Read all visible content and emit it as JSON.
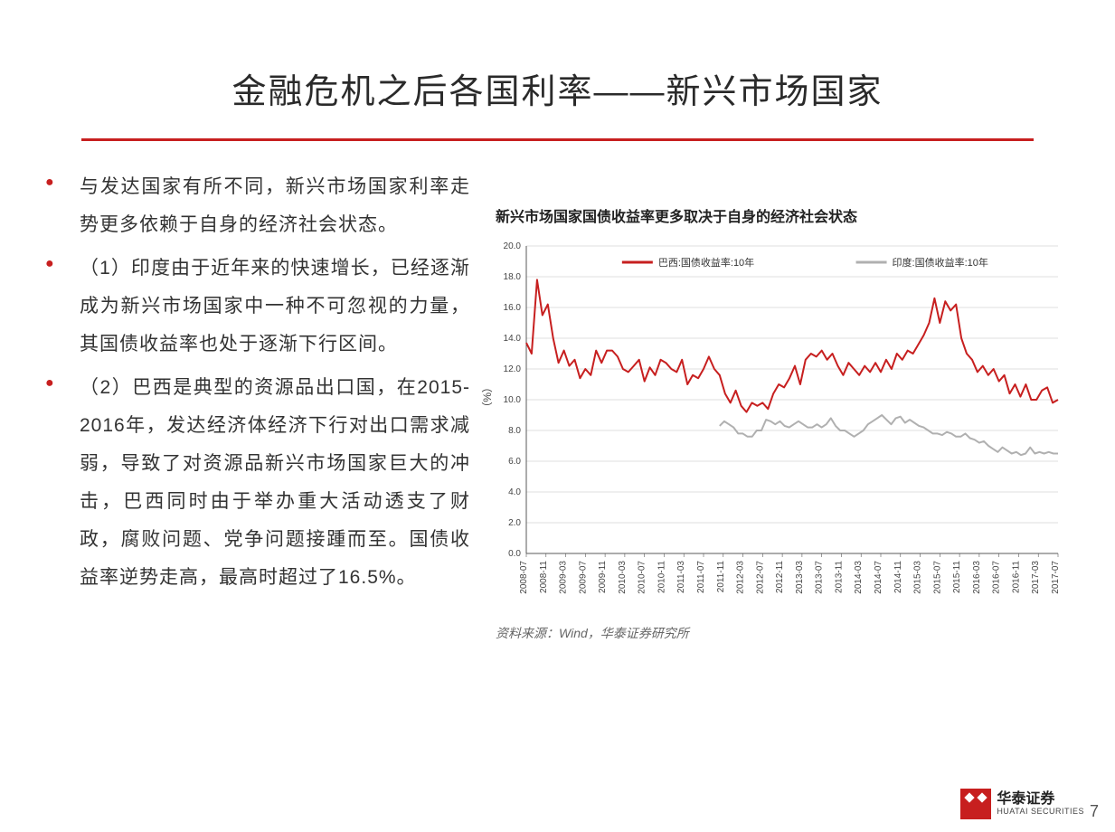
{
  "title": "金融危机之后各国利率——新兴市场国家",
  "bullets": [
    "与发达国家有所不同，新兴市场国家利率走势更多依赖于自身的经济社会状态。",
    "（1）印度由于近年来的快速增长，已经逐渐成为新兴市场国家中一种不可忽视的力量，其国债收益率也处于逐渐下行区间。",
    "（2）巴西是典型的资源品出口国，在2015-2016年，发达经济体经济下行对出口需求减弱，导致了对资源品新兴市场国家巨大的冲击，巴西同时由于举办重大活动透支了财政，腐败问题、党争问题接踵而至。国债收益率逆势走高，最高时超过了16.5%。"
  ],
  "chart": {
    "title": "新兴市场国家国债收益率更多取决于自身的经济社会状态",
    "y_label": "（%）",
    "y_min": 0.0,
    "y_max": 20.0,
    "y_step": 2.0,
    "x_labels": [
      "2008-07",
      "2008-11",
      "2009-03",
      "2009-07",
      "2009-11",
      "2010-03",
      "2010-07",
      "2010-11",
      "2011-03",
      "2011-07",
      "2011-11",
      "2012-03",
      "2012-07",
      "2012-11",
      "2013-03",
      "2013-07",
      "2013-11",
      "2014-03",
      "2014-07",
      "2014-11",
      "2015-03",
      "2015-07",
      "2015-11",
      "2016-03",
      "2016-07",
      "2016-11",
      "2017-03",
      "2017-07"
    ],
    "legend": [
      {
        "label": "巴西:国债收益率:10年",
        "color": "#c71f1f"
      },
      {
        "label": "印度:国债收益率:10年",
        "color": "#b0b0b0"
      }
    ],
    "series_brazil_color": "#c71f1f",
    "series_india_color": "#b0b0b0",
    "line_width": 2.0,
    "grid_color": "#bfbfbf",
    "axis_color": "#5a5a5a",
    "tick_font_size": 10,
    "legend_font_size": 11,
    "brazil": [
      13.7,
      13.0,
      17.8,
      15.5,
      16.2,
      14.0,
      12.4,
      13.2,
      12.2,
      12.6,
      11.4,
      12.0,
      11.6,
      13.2,
      12.4,
      13.2,
      13.2,
      12.8,
      12.0,
      11.8,
      12.2,
      12.6,
      11.2,
      12.1,
      11.6,
      12.6,
      12.4,
      12.0,
      11.8,
      12.6,
      11.0,
      11.6,
      11.4,
      12.0,
      12.8,
      12.0,
      11.6,
      10.4,
      9.8,
      10.6,
      9.6,
      9.2,
      9.8,
      9.6,
      9.8,
      9.4,
      10.4,
      11.0,
      10.8,
      11.4,
      12.2,
      11.0,
      12.6,
      13.0,
      12.8,
      13.2,
      12.6,
      13.0,
      12.2,
      11.6,
      12.4,
      12.0,
      11.6,
      12.2,
      11.8,
      12.4,
      11.8,
      12.6,
      12.0,
      13.0,
      12.6,
      13.2,
      13.0,
      13.6,
      14.2,
      15.0,
      16.6,
      15.0,
      16.4,
      15.8,
      16.2,
      14.0,
      13.0,
      12.6,
      11.8,
      12.2,
      11.6,
      12.0,
      11.2,
      11.6,
      10.4,
      11.0,
      10.2,
      11.0,
      10.0,
      10.0,
      10.6,
      10.8,
      9.8,
      10.0
    ],
    "india_start_index": 36,
    "india": [
      8.3,
      8.6,
      8.4,
      8.2,
      7.8,
      7.8,
      7.6,
      7.6,
      8.0,
      8.0,
      8.7,
      8.6,
      8.4,
      8.6,
      8.3,
      8.2,
      8.4,
      8.6,
      8.4,
      8.2,
      8.2,
      8.4,
      8.2,
      8.4,
      8.8,
      8.3,
      8.0,
      8.0,
      7.8,
      7.6,
      7.8,
      8.0,
      8.4,
      8.6,
      8.8,
      9.0,
      8.7,
      8.4,
      8.8,
      8.9,
      8.5,
      8.7,
      8.5,
      8.3,
      8.2,
      8.0,
      7.8,
      7.8,
      7.7,
      7.9,
      7.8,
      7.6,
      7.6,
      7.8,
      7.5,
      7.4,
      7.2,
      7.3,
      7.0,
      6.8,
      6.6,
      6.9,
      6.7,
      6.5,
      6.6,
      6.4,
      6.5,
      6.9,
      6.5,
      6.6,
      6.5,
      6.6,
      6.5,
      6.5
    ]
  },
  "source": "资料来源：Wind，华泰证券研究所",
  "page_number": "7",
  "logo": {
    "cn": "华泰证券",
    "en": "HUATAI SECURITIES"
  }
}
